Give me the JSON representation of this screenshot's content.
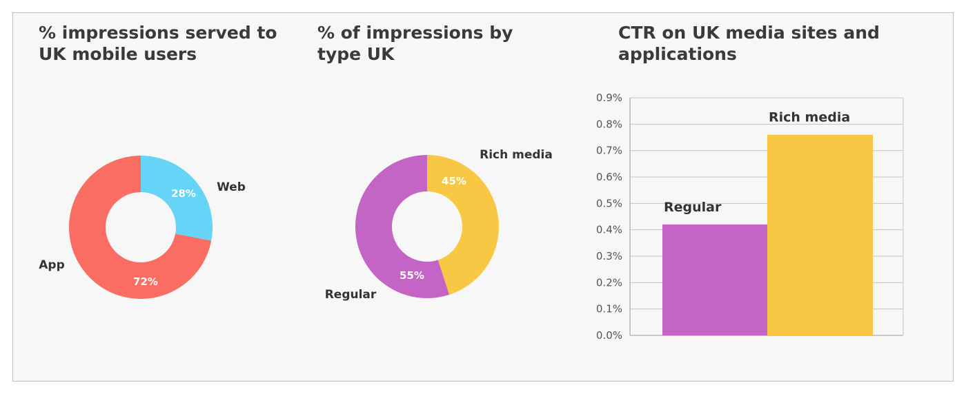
{
  "chart_data": [
    {
      "type": "pie",
      "title": "% impressions served to UK mobile users",
      "title_lines": [
        "% impressions served to",
        "UK mobile users"
      ],
      "donut": true,
      "slices": [
        {
          "label": "Web",
          "value": 28,
          "value_label": "28%",
          "color": "#66d4f7"
        },
        {
          "label": "App",
          "value": 72,
          "value_label": "72%",
          "color": "#f96d62"
        }
      ]
    },
    {
      "type": "pie",
      "title": "% of impressions by type UK",
      "title_lines": [
        "% of impressions by",
        "type UK"
      ],
      "donut": true,
      "slices": [
        {
          "label": "Rich media",
          "value": 45,
          "value_label": "45%",
          "color": "#f8c743"
        },
        {
          "label": "Regular",
          "value": 55,
          "value_label": "55%",
          "color": "#c465c6"
        }
      ]
    },
    {
      "type": "bar",
      "title": "CTR on UK media sites and applications",
      "title_lines": [
        "CTR on UK media sites and",
        "applications"
      ],
      "categories": [
        "Regular",
        "Rich media"
      ],
      "values": [
        0.42,
        0.76
      ],
      "colors": [
        "#c465c6",
        "#f8c743"
      ],
      "ylim": [
        0,
        0.9
      ],
      "yticks": [
        "0.0%",
        "0.1%",
        "0.2%",
        "0.3%",
        "0.4%",
        "0.5%",
        "0.6%",
        "0.7%",
        "0.8%",
        "0.9%"
      ],
      "grid": true
    }
  ]
}
